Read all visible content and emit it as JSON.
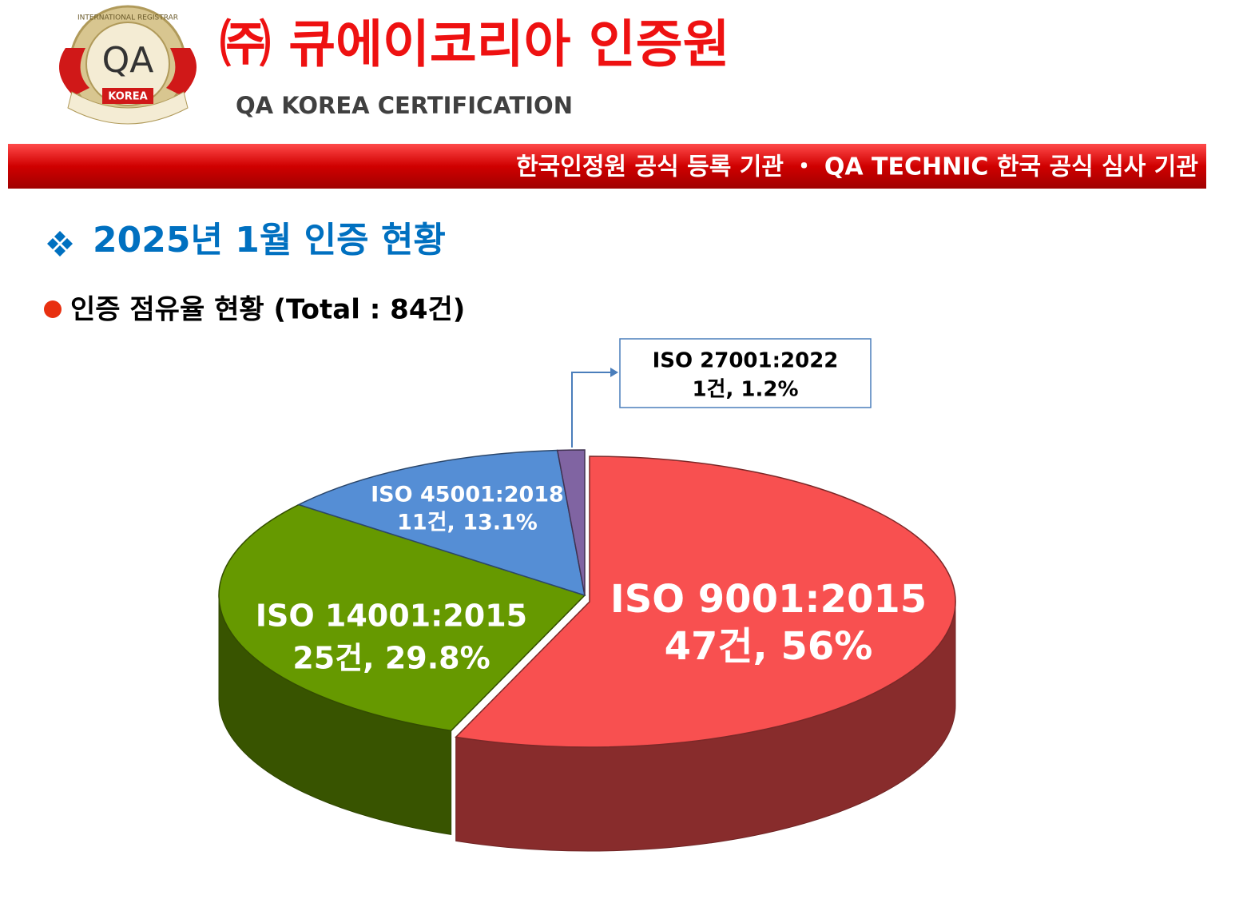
{
  "header": {
    "logo": {
      "emblem": "QA",
      "ring": "INTERNATIONAL REGISTRAR",
      "ribbon": "KOREA"
    },
    "title": "㈜ 큐에이코리아 인증원",
    "subtitle": "QA KOREA CERTIFICATION",
    "banner": "한국인정원 공식 등록 기관 ・ QA TECHNIC 한국 공식 심사 기관"
  },
  "section_title": "2025년 1월 인증 현황",
  "chart_data": {
    "type": "pie",
    "title": "인증 점유율 현황 (Total : 84건)",
    "categories": [
      "ISO 9001:2015",
      "ISO 14001:2015",
      "ISO 45001:2018",
      "ISO 27001:2022"
    ],
    "values": [
      47,
      25,
      11,
      1
    ],
    "value_labels": [
      "47건, 56%",
      "25건, 29.8%",
      "11건, 13.1%",
      "1건, 1.2%"
    ],
    "colors": [
      "#f85050",
      "#669900",
      "#558ed5",
      "#8064a2"
    ]
  }
}
